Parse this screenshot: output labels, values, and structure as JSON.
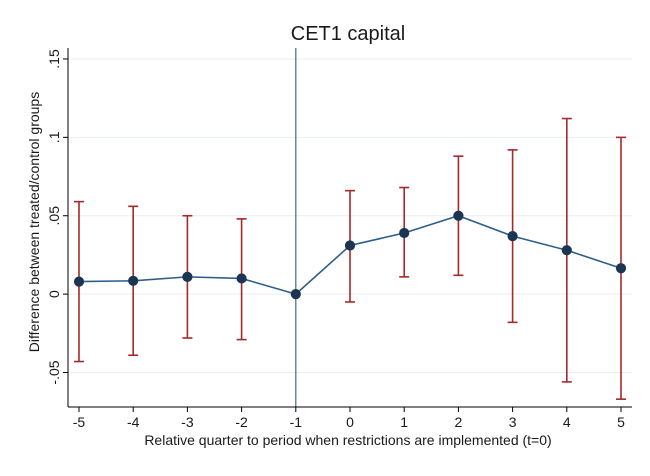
{
  "chart_data": {
    "type": "line",
    "title": "CET1 capital",
    "xlabel": "Relative quarter to period when restrictions are implemented (t=0)",
    "ylabel": "Difference between treated/control groups",
    "x": [
      -5,
      -4,
      -3,
      -2,
      -1,
      0,
      1,
      2,
      3,
      4,
      5
    ],
    "x_tick_labels": [
      "-5",
      "-4",
      "-3",
      "-2",
      "-1",
      "0",
      "1",
      "2",
      "3",
      "4",
      "5"
    ],
    "y_ticks": [
      -0.05,
      0,
      0.05,
      0.1,
      0.15
    ],
    "y_tick_labels": [
      "-.05",
      "0",
      ".05",
      ".1",
      ".15"
    ],
    "xlim": [
      -5,
      5
    ],
    "ylim": [
      -0.072,
      0.157
    ],
    "grid": "horizontal",
    "reference_line_x": -1,
    "series": [
      {
        "values": [
          0.008,
          0.0085,
          0.011,
          0.01,
          0.0,
          0.031,
          0.039,
          0.05,
          0.037,
          0.028,
          0.0165
        ],
        "ci_low": [
          -0.043,
          -0.039,
          -0.028,
          -0.029,
          null,
          -0.005,
          0.011,
          0.012,
          -0.018,
          -0.056,
          -0.067
        ],
        "ci_high": [
          0.059,
          0.056,
          0.05,
          0.048,
          null,
          0.066,
          0.068,
          0.088,
          0.092,
          0.112,
          0.1
        ]
      }
    ],
    "colors": {
      "line": "#2e5f8a",
      "marker_fill": "#1c3552",
      "errorbar": "#a52a2a",
      "refline": "#4a6a8a",
      "grid": "#e8eef3",
      "axis": "#000000"
    }
  }
}
